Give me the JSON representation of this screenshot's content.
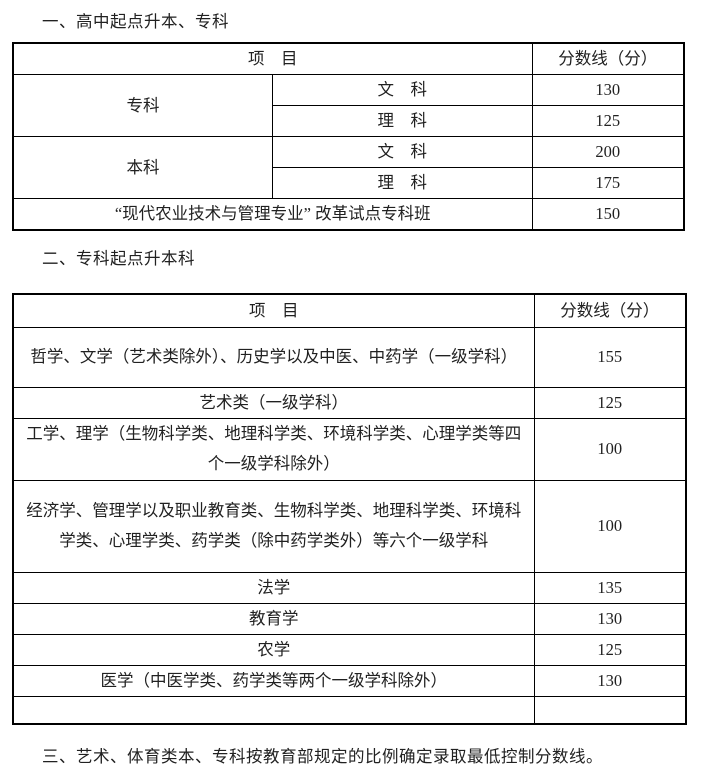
{
  "page": {
    "bg": "#ffffff",
    "text_color": "#212121",
    "border_color": "#000000"
  },
  "section_one": {
    "heading": "一、高中起点升本、专科",
    "table": {
      "col_item": "项　目",
      "col_score": "分数线（分）",
      "groups": [
        {
          "label": "专科",
          "rows": [
            {
              "subject": "文　科",
              "score": "130"
            },
            {
              "subject": "理　科",
              "score": "125"
            }
          ]
        },
        {
          "label": "本科",
          "rows": [
            {
              "subject": "文　科",
              "score": "200"
            },
            {
              "subject": "理　科",
              "score": "175"
            }
          ]
        }
      ],
      "pilot_row": {
        "label": "“现代农业技术与管理专业” 改革试点专科班",
        "score": "150"
      }
    }
  },
  "section_two": {
    "heading": "二、专科起点升本科",
    "table": {
      "col_item": "项　目",
      "col_score": "分数线（分）",
      "rows": [
        {
          "label": "哲学、文学（艺术类除外）、历史学以及中医、中药学（一级学科）",
          "score": "155"
        },
        {
          "label": "艺术类（一级学科）",
          "score": "125"
        },
        {
          "label": "工学、理学（生物科学类、地理科学类、环境科学类、心理学类等四个一级学科除外）",
          "score": "100"
        },
        {
          "label": "经济学、管理学以及职业教育类、生物科学类、地理科学类、环境科学类、心理学类、药学类（除中药学类外）等六个一级学科",
          "score": "100"
        },
        {
          "label": "法学",
          "score": "135"
        },
        {
          "label": "教育学",
          "score": "130"
        },
        {
          "label": "农学",
          "score": "125"
        },
        {
          "label": "医学（中医学类、药学类等两个一级学科除外）",
          "score": "130"
        },
        {
          "label": "",
          "score": ""
        }
      ]
    }
  },
  "section_three": {
    "text": "三、艺术、体育类本、专科按教育部规定的比例确定录取最低控制分数线。"
  }
}
